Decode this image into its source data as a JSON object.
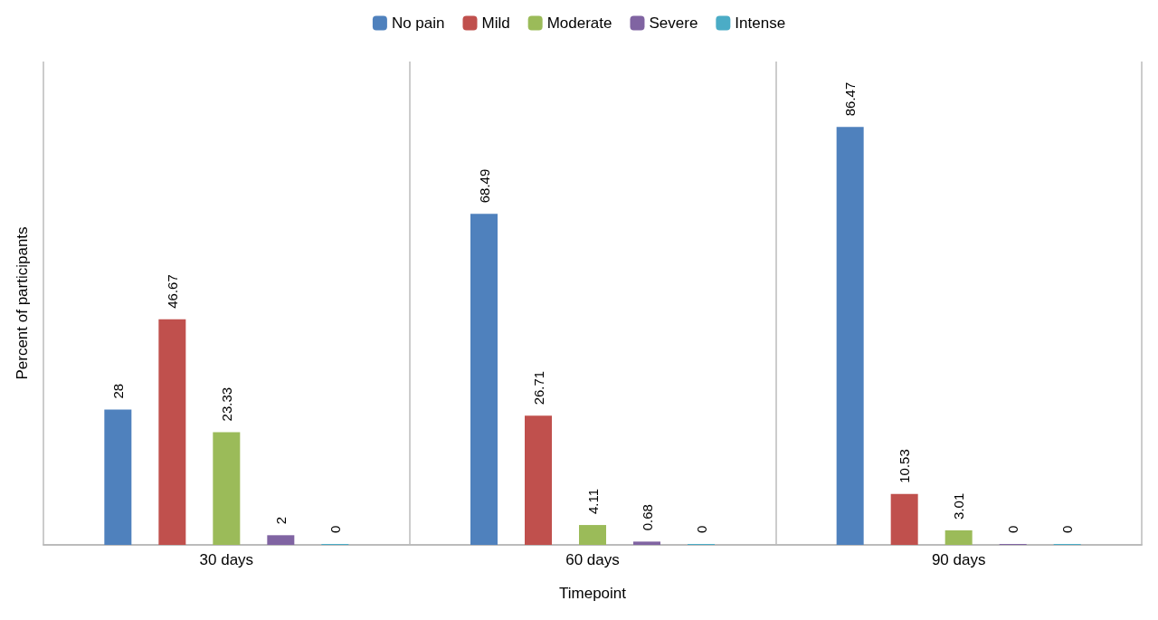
{
  "chart_data": {
    "type": "bar",
    "xlabel": "Timepoint",
    "ylabel": "Percent of participants",
    "categories": [
      "30 days",
      "60 days",
      "90 days"
    ],
    "series": [
      {
        "name": "No pain",
        "color": "#4f81bd",
        "values": [
          28,
          68.49,
          86.47
        ]
      },
      {
        "name": "Mild",
        "color": "#c0504d",
        "values": [
          46.67,
          26.71,
          10.53
        ]
      },
      {
        "name": "Moderate",
        "color": "#9bbb59",
        "values": [
          23.33,
          4.11,
          3.01
        ]
      },
      {
        "name": "Severe",
        "color": "#8064a2",
        "values": [
          2,
          0.68,
          0
        ]
      },
      {
        "name": "Intense",
        "color": "#4bacc6",
        "values": [
          0,
          0,
          0
        ]
      }
    ],
    "legend": "top",
    "grid": "x",
    "data_labels": true
  }
}
